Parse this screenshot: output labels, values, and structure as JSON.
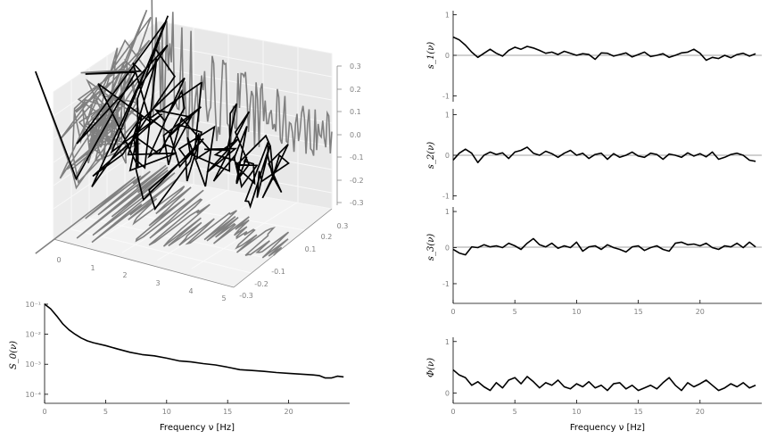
{
  "chart_data": [
    {
      "type": "line3d",
      "panel": "3d-trajectory",
      "x_ticks": [
        "0",
        "1",
        "2",
        "3",
        "4",
        "5"
      ],
      "y_ticks": [
        "-0.3",
        "-0.2",
        "-0.1",
        "0.1",
        "0.2",
        "0.3"
      ],
      "z_ticks": [
        "0.3",
        "0.2",
        "0.1",
        "0.0",
        "-0.1",
        "-0.2",
        "-0.3"
      ],
      "series": [
        {
          "role": "trajectory",
          "color": "#000000"
        },
        {
          "role": "projection-back-wall",
          "color": "#808080"
        },
        {
          "role": "projection-side-wall",
          "color": "#808080"
        },
        {
          "role": "projection-floor",
          "color": "#808080"
        }
      ],
      "grid": true
    },
    {
      "type": "line",
      "panel": "spectrum",
      "ylabel": "S_0(ν)",
      "xlabel": "Frequency ν [Hz]",
      "yscale": "log",
      "ylim": [
        5e-05,
        0.15
      ],
      "xlim": [
        0,
        25
      ],
      "x_ticks": [
        "0",
        "5",
        "10",
        "15",
        "20"
      ],
      "y_ticks": [
        "10⁻¹",
        "10⁻²",
        "10⁻³",
        "10⁻⁴"
      ],
      "x": [
        0,
        0.5,
        1,
        1.5,
        2,
        2.5,
        3,
        3.5,
        4,
        5,
        6,
        7,
        8,
        9,
        10,
        11,
        12,
        13,
        14,
        15,
        16,
        17,
        18,
        19,
        20,
        21,
        22,
        22.5,
        23,
        23.5,
        24,
        24.5
      ],
      "y": [
        0.1,
        0.07,
        0.04,
        0.022,
        0.014,
        0.01,
        0.0075,
        0.006,
        0.0052,
        0.0042,
        0.0032,
        0.0025,
        0.0021,
        0.0019,
        0.0016,
        0.0013,
        0.0012,
        0.00105,
        0.00095,
        0.0008,
        0.00066,
        0.00062,
        0.00058,
        0.00053,
        0.0005,
        0.00047,
        0.00044,
        0.00042,
        0.00035,
        0.00035,
        0.0004,
        0.00038
      ]
    },
    {
      "type": "line",
      "panel": "s1",
      "ylabel": "s_1(ν)",
      "ylim": [
        -1.1,
        1.1
      ],
      "xlim": [
        0,
        25
      ],
      "y_ticks": [
        "1",
        "0",
        "-1"
      ],
      "x": [
        0,
        0.5,
        1,
        1.5,
        2,
        2.5,
        3,
        3.5,
        4,
        4.5,
        5,
        5.5,
        6,
        6.5,
        7,
        7.5,
        8,
        8.5,
        9,
        9.5,
        10,
        10.5,
        11,
        11.5,
        12,
        12.5,
        13,
        13.5,
        14,
        14.5,
        15,
        15.5,
        16,
        16.5,
        17,
        17.5,
        18,
        18.5,
        19,
        19.5,
        20,
        20.5,
        21,
        21.5,
        22,
        22.5,
        23,
        23.5,
        24,
        24.5
      ],
      "y": [
        0.45,
        0.38,
        0.25,
        0.08,
        -0.05,
        0.05,
        0.15,
        0.05,
        -0.02,
        0.12,
        0.2,
        0.15,
        0.22,
        0.18,
        0.12,
        0.05,
        0.08,
        0.02,
        0.1,
        0.05,
        0.0,
        0.04,
        0.02,
        -0.1,
        0.06,
        0.05,
        -0.02,
        0.02,
        0.06,
        -0.04,
        0.02,
        0.08,
        -0.03,
        0.0,
        0.04,
        -0.05,
        0.0,
        0.06,
        0.08,
        0.15,
        0.05,
        -0.12,
        -0.05,
        -0.08,
        0.0,
        -0.06,
        0.02,
        0.05,
        -0.02,
        0.04
      ]
    },
    {
      "type": "line",
      "panel": "s2",
      "ylabel": "s_2(ν)",
      "ylim": [
        -1.1,
        1.1
      ],
      "xlim": [
        0,
        25
      ],
      "y_ticks": [
        "1",
        "0",
        "-1"
      ],
      "x": [
        0,
        0.5,
        1,
        1.5,
        2,
        2.5,
        3,
        3.5,
        4,
        4.5,
        5,
        5.5,
        6,
        6.5,
        7,
        7.5,
        8,
        8.5,
        9,
        9.5,
        10,
        10.5,
        11,
        11.5,
        12,
        12.5,
        13,
        13.5,
        14,
        14.5,
        15,
        15.5,
        16,
        16.5,
        17,
        17.5,
        18,
        18.5,
        19,
        19.5,
        20,
        20.5,
        21,
        21.5,
        22,
        22.5,
        23,
        23.5,
        24,
        24.5
      ],
      "y": [
        -0.12,
        0.05,
        0.15,
        0.05,
        -0.18,
        0.0,
        0.08,
        0.02,
        0.06,
        -0.08,
        0.08,
        0.12,
        0.2,
        0.05,
        0.0,
        0.1,
        0.04,
        -0.05,
        0.05,
        0.12,
        0.0,
        0.05,
        -0.08,
        0.02,
        0.05,
        -0.1,
        0.04,
        -0.05,
        0.0,
        0.08,
        -0.02,
        -0.05,
        0.05,
        0.02,
        -0.1,
        0.03,
        0.0,
        -0.05,
        0.06,
        -0.02,
        0.04,
        -0.04,
        0.08,
        -0.1,
        -0.05,
        0.02,
        0.05,
        0.0,
        -0.12,
        -0.15
      ]
    },
    {
      "type": "line",
      "panel": "s3",
      "ylabel": "s_3(ν)",
      "ylim": [
        -1.1,
        1.1
      ],
      "xlim": [
        0,
        25
      ],
      "x_ticks": [
        "0",
        "5",
        "10",
        "15",
        "20"
      ],
      "y_ticks": [
        "1",
        "0",
        "-1"
      ],
      "x": [
        0,
        0.5,
        1,
        1.5,
        2,
        2.5,
        3,
        3.5,
        4,
        4.5,
        5,
        5.5,
        6,
        6.5,
        7,
        7.5,
        8,
        8.5,
        9,
        9.5,
        10,
        10.5,
        11,
        11.5,
        12,
        12.5,
        13,
        13.5,
        14,
        14.5,
        15,
        15.5,
        16,
        16.5,
        17,
        17.5,
        18,
        18.5,
        19,
        19.5,
        20,
        20.5,
        21,
        21.5,
        22,
        22.5,
        23,
        23.5,
        24,
        24.5
      ],
      "y": [
        -0.05,
        -0.15,
        -0.2,
        0.02,
        0.0,
        0.08,
        0.02,
        0.05,
        0.0,
        0.12,
        0.05,
        -0.05,
        0.12,
        0.25,
        0.08,
        0.02,
        0.12,
        -0.02,
        0.05,
        0.0,
        0.15,
        -0.1,
        0.02,
        0.05,
        -0.05,
        0.08,
        0.0,
        -0.05,
        -0.12,
        0.02,
        0.05,
        -0.08,
        0.0,
        0.05,
        -0.05,
        -0.1,
        0.12,
        0.15,
        0.08,
        0.1,
        0.05,
        0.12,
        0.0,
        -0.05,
        0.05,
        0.02,
        0.12,
        0.0,
        0.15,
        0.02
      ]
    },
    {
      "type": "line",
      "panel": "phi",
      "ylabel": "Φ(ν)",
      "xlabel": "Frequency ν [Hz]",
      "ylim": [
        -0.2,
        1.1
      ],
      "xlim": [
        0,
        25
      ],
      "x_ticks": [
        "0",
        "5",
        "10",
        "15",
        "20"
      ],
      "y_ticks": [
        "1",
        "0"
      ],
      "x": [
        0,
        0.5,
        1,
        1.5,
        2,
        2.5,
        3,
        3.5,
        4,
        4.5,
        5,
        5.5,
        6,
        6.5,
        7,
        7.5,
        8,
        8.5,
        9,
        9.5,
        10,
        10.5,
        11,
        11.5,
        12,
        12.5,
        13,
        13.5,
        14,
        14.5,
        15,
        15.5,
        16,
        16.5,
        17,
        17.5,
        18,
        18.5,
        19,
        19.5,
        20,
        20.5,
        21,
        21.5,
        22,
        22.5,
        23,
        23.5,
        24,
        24.5
      ],
      "y": [
        0.45,
        0.35,
        0.3,
        0.15,
        0.22,
        0.12,
        0.05,
        0.2,
        0.1,
        0.25,
        0.3,
        0.18,
        0.32,
        0.22,
        0.1,
        0.2,
        0.15,
        0.25,
        0.12,
        0.08,
        0.18,
        0.12,
        0.22,
        0.1,
        0.15,
        0.05,
        0.18,
        0.2,
        0.08,
        0.15,
        0.05,
        0.1,
        0.15,
        0.08,
        0.2,
        0.3,
        0.15,
        0.05,
        0.2,
        0.12,
        0.18,
        0.25,
        0.15,
        0.05,
        0.1,
        0.18,
        0.12,
        0.2,
        0.1,
        0.15
      ]
    }
  ]
}
